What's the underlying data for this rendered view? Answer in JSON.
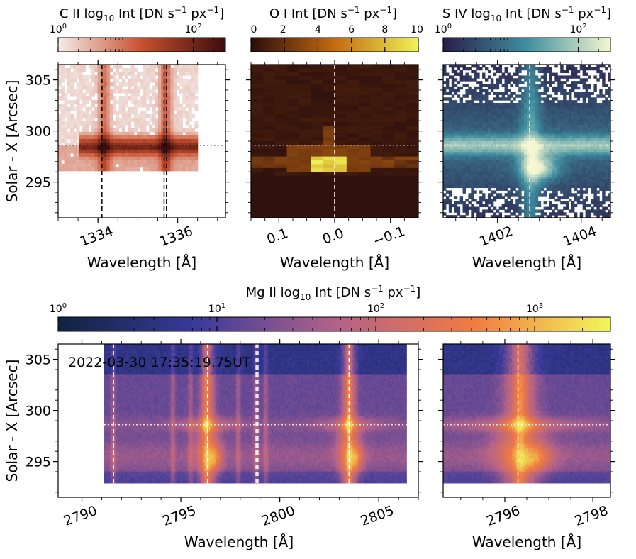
{
  "colors": {
    "c2_low": "#f4ecea",
    "c2_mid": "#c8502f",
    "c2_high": "#3d0c0c",
    "o1_low": "#2a0d0d",
    "o1_mid": "#c46a10",
    "o1_high": "#eef256",
    "s4_low": "#2b1c4a",
    "s4_mid": "#3f8fa0",
    "s4_high": "#f4f7d0",
    "mg_low": "#10233f",
    "mg_mid1": "#3a3a9a",
    "mg_mid2": "#b2628a",
    "mg_mid3": "#f07a42",
    "mg_high": "#f2f75a",
    "timestamp": "#f5a800"
  },
  "chart_data": [
    {
      "id": "c2",
      "type": "heatmap",
      "title_parts": [
        "C II log",
        "10",
        " Int [DN s",
        "−1",
        " px",
        "−1",
        "]"
      ],
      "colorbar": {
        "scale": "log",
        "min": 1,
        "max": 300,
        "ticks": [
          {
            "v": 1,
            "b": "10",
            "e": "0"
          },
          {
            "v": 100,
            "b": "10",
            "e": "2"
          }
        ],
        "cmap": [
          "c2_low",
          "c2_mid",
          "c2_high"
        ]
      },
      "xlabel": "Wavelength [Å]",
      "ylabel": "Solar - X [Arcsec]",
      "xlim": [
        1333.0,
        1337.2
      ],
      "ylim": [
        291.5,
        306.5
      ],
      "xticks": [
        {
          "v": 1334,
          "label": "1334"
        },
        {
          "v": 1336,
          "label": "1336"
        }
      ],
      "yticks": [
        {
          "v": 295,
          "label": "295"
        },
        {
          "v": 300,
          "label": "300"
        },
        {
          "v": 305,
          "label": "305"
        }
      ],
      "vlines": [
        1334.1,
        1335.66,
        1335.72
      ],
      "hline": 298.6,
      "data_extent": {
        "x": [
          1333.0,
          1336.5
        ],
        "y": [
          296.1,
          306.5
        ]
      },
      "features": [
        {
          "kind": "hband",
          "y": 298.6,
          "x0": 1333.5,
          "x1": 1336.5,
          "amp": 1.0
        },
        {
          "kind": "vband",
          "x": 1334.15,
          "amp": 0.75
        },
        {
          "kind": "vband",
          "x": 1335.7,
          "amp": 0.85
        }
      ]
    },
    {
      "id": "o1",
      "type": "heatmap",
      "title_parts": [
        "O I Int [DN s",
        "−1",
        " px",
        "−1",
        "]"
      ],
      "colorbar": {
        "scale": "linear",
        "min": 0,
        "max": 10,
        "ticks": [
          {
            "v": 0,
            "t": "0"
          },
          {
            "v": 2,
            "t": "2"
          },
          {
            "v": 4,
            "t": "4"
          },
          {
            "v": 6,
            "t": "6"
          },
          {
            "v": 8,
            "t": "8"
          },
          {
            "v": 10,
            "t": "10"
          }
        ],
        "cmap": [
          "o1_low",
          "o1_mid",
          "o1_high"
        ]
      },
      "xlabel": "Wavelength [Å]",
      "xlim": [
        0.15,
        -0.15
      ],
      "ylim": [
        291.5,
        306.5
      ],
      "xticks": [
        {
          "v": 0.1,
          "label": "0.1"
        },
        {
          "v": 0.0,
          "label": "0.0"
        },
        {
          "v": -0.1,
          "label": "−0.1"
        }
      ],
      "vlines": [
        0.0
      ],
      "hline": 298.6,
      "data_extent": {
        "x": [
          0.15,
          -0.15
        ],
        "y": [
          291.5,
          306.5
        ]
      },
      "features": [
        {
          "kind": "block",
          "x0": 0.04,
          "x1": -0.02,
          "y0": 296.0,
          "y1": 297.6,
          "amp": 10
        },
        {
          "kind": "block",
          "x0": 0.09,
          "x1": -0.07,
          "y0": 296.0,
          "y1": 298.6,
          "amp": 3
        }
      ]
    },
    {
      "id": "s4",
      "type": "heatmap",
      "title_parts": [
        "S IV log",
        "10",
        " Int [DN s",
        "−1",
        " px",
        "−1",
        "]"
      ],
      "colorbar": {
        "scale": "log",
        "min": 1,
        "max": 300,
        "ticks": [
          {
            "v": 1,
            "b": "10",
            "e": "0"
          },
          {
            "v": 100,
            "b": "10",
            "e": "2"
          }
        ],
        "cmap": [
          "s4_low",
          "s4_mid",
          "s4_high"
        ]
      },
      "xlabel": "Wavelength [Å]",
      "xlim": [
        1400.7,
        1404.7
      ],
      "ylim": [
        291.5,
        306.5
      ],
      "xticks": [
        {
          "v": 1402,
          "label": "1402"
        },
        {
          "v": 1404,
          "label": "1404"
        }
      ],
      "vlines": [
        1402.77
      ],
      "hline": 298.6,
      "data_extent": {
        "x": [
          1400.7,
          1404.7
        ],
        "y": [
          291.5,
          306.5
        ]
      },
      "features": [
        {
          "kind": "hband",
          "y": 298.6,
          "x0": 1400.7,
          "x1": 1404.7,
          "amp": 0.8
        },
        {
          "kind": "vband",
          "x": 1402.8,
          "amp": 0.7
        },
        {
          "kind": "blob",
          "x": 1403.0,
          "y": 296.4,
          "amp": 1.0
        }
      ]
    },
    {
      "id": "mg_wide",
      "type": "heatmap",
      "colorbar": {
        "title_parts": [
          "Mg II log",
          "10",
          " Int  [DN s",
          "−1",
          " px",
          "−1",
          "]"
        ],
        "scale": "log",
        "min": 1,
        "max": 3000,
        "ticks": [
          {
            "v": 1,
            "b": "10",
            "e": "0"
          },
          {
            "v": 10,
            "b": "10",
            "e": "1"
          },
          {
            "v": 100,
            "b": "10",
            "e": "2"
          },
          {
            "v": 1000,
            "b": "10",
            "e": "3"
          }
        ],
        "cmap": [
          "mg_low",
          "mg_mid1",
          "mg_mid2",
          "mg_mid3",
          "mg_high"
        ]
      },
      "annotation": "2022-03-30 17:35:19.75UT",
      "xlabel": "Wavelength [Å]",
      "ylabel": "Solar - X [Arcsec]",
      "xlim": [
        2788.8,
        2807.0
      ],
      "ylim": [
        291.5,
        306.5
      ],
      "xticks": [
        {
          "v": 2790,
          "label": "2790"
        },
        {
          "v": 2795,
          "label": "2795"
        },
        {
          "v": 2800,
          "label": "2800"
        },
        {
          "v": 2805,
          "label": "2805"
        }
      ],
      "yticks": [
        {
          "v": 295,
          "label": "295"
        },
        {
          "v": 300,
          "label": "300"
        },
        {
          "v": 305,
          "label": "305"
        }
      ],
      "vlines": [
        2791.6,
        2796.35,
        2798.8,
        2798.9,
        2803.5
      ],
      "hline": 298.6,
      "data_extent": {
        "x": [
          2791.1,
          2806.4
        ],
        "y": [
          292.9,
          306.5
        ]
      },
      "lines": [
        2791.6,
        2794.6,
        2795.5,
        2796.3,
        2797.9,
        2798.8,
        2799.3,
        2803.5
      ],
      "strong_lines": [
        2796.35,
        2803.5
      ]
    },
    {
      "id": "mg_zoom",
      "type": "heatmap",
      "xlabel": "Wavelength [Å]",
      "xlim": [
        2794.6,
        2798.4
      ],
      "ylim": [
        291.5,
        306.5
      ],
      "xticks": [
        {
          "v": 2796,
          "label": "2796"
        },
        {
          "v": 2798,
          "label": "2798"
        }
      ],
      "vlines": [
        2796.3
      ],
      "hline": 298.6,
      "data_extent": {
        "x": [
          2794.6,
          2798.4
        ],
        "y": [
          292.9,
          306.5
        ]
      },
      "lines": [
        2796.35
      ],
      "strong_lines": [
        2796.35
      ]
    }
  ]
}
